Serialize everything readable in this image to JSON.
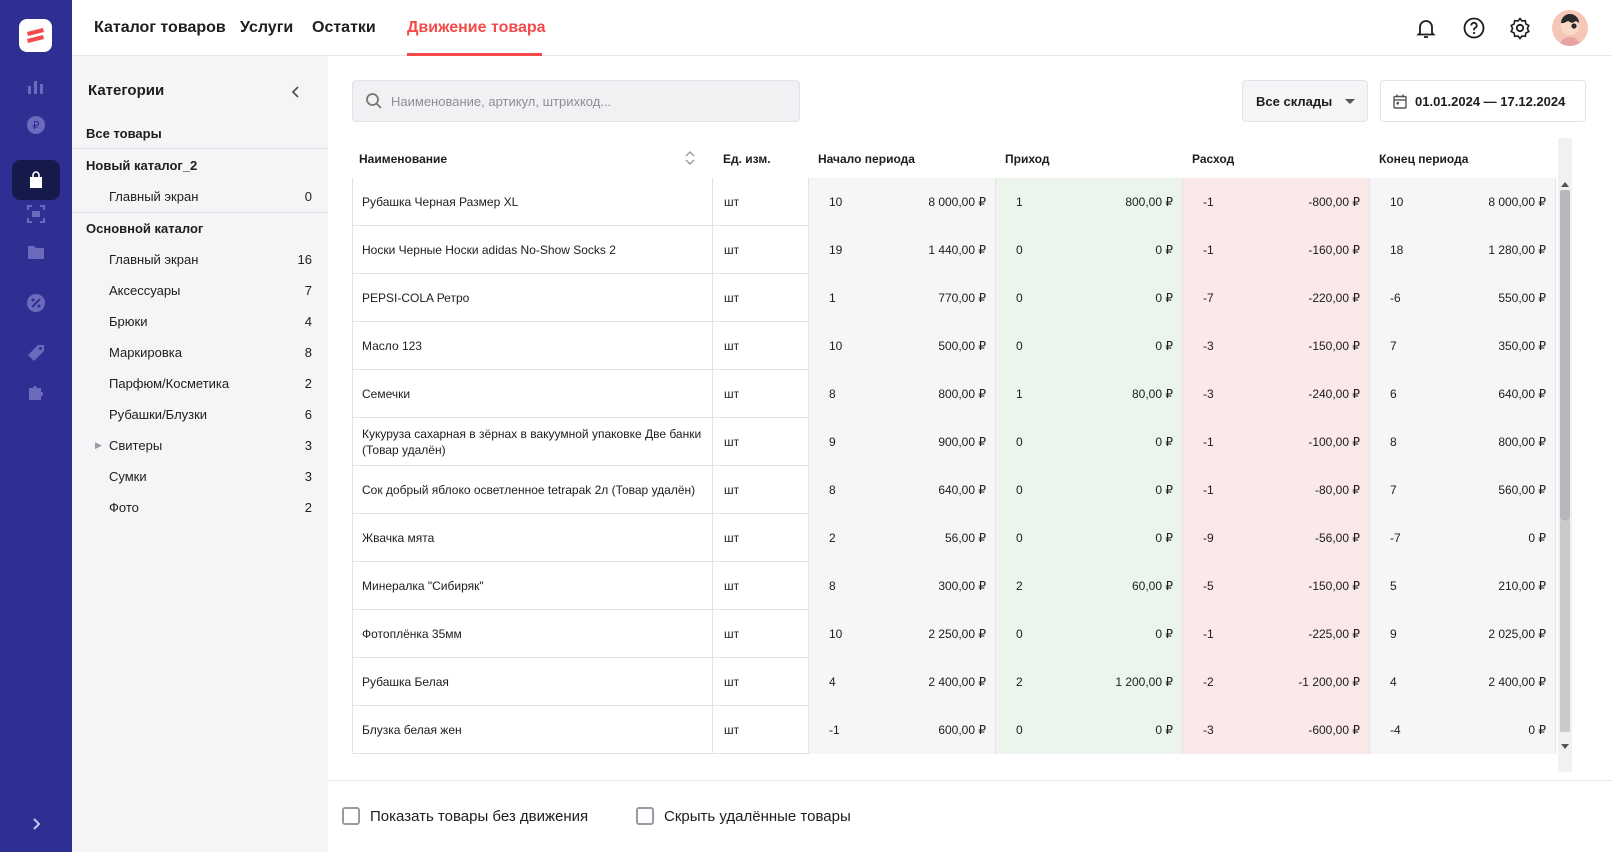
{
  "nav": {
    "tabs": [
      {
        "label": "Каталог товаров"
      },
      {
        "label": "Услуги"
      },
      {
        "label": "Остатки"
      },
      {
        "label": "Движение товара"
      }
    ],
    "active_tab": "Движение товара"
  },
  "categories": {
    "title": "Категории",
    "all": "Все товары",
    "groups": [
      {
        "label": "Новый каталог_2",
        "items": [
          {
            "label": "Главный экран",
            "count": "0"
          }
        ]
      },
      {
        "label": "Основной каталог",
        "items": [
          {
            "label": "Главный экран",
            "count": "16"
          },
          {
            "label": "Аксессуары",
            "count": "7"
          },
          {
            "label": "Брюки",
            "count": "4"
          },
          {
            "label": "Маркировка",
            "count": "8"
          },
          {
            "label": "Парфюм/Косметика",
            "count": "2"
          },
          {
            "label": "Рубашки/Блузки",
            "count": "6"
          },
          {
            "label": "Свитеры",
            "count": "3"
          },
          {
            "label": "Сумки",
            "count": "3"
          },
          {
            "label": "Фото",
            "count": "2"
          }
        ]
      }
    ]
  },
  "search": {
    "placeholder": "Наименование, артикул, штрихкод..."
  },
  "warehouse": {
    "selected": "Все склады"
  },
  "date_range": {
    "value": "01.01.2024 — 17.12.2024"
  },
  "table": {
    "headers": {
      "name": "Наименование",
      "unit": "Ед. изм.",
      "start": "Начало периода",
      "income": "Приход",
      "outcome": "Расход",
      "end": "Конец периода"
    },
    "rows": [
      {
        "name": "Рубашка Черная Размер XL",
        "unit": "шт",
        "start_q": "10",
        "start_s": "8 000,00 ₽",
        "in_q": "1",
        "in_s": "800,00 ₽",
        "out_q": "-1",
        "out_s": "-800,00 ₽",
        "end_q": "10",
        "end_s": "8 000,00 ₽"
      },
      {
        "name": "Носки Черные Носки adidas No-Show Socks 2",
        "unit": "шт",
        "start_q": "19",
        "start_s": "1 440,00 ₽",
        "in_q": "0",
        "in_s": "0 ₽",
        "out_q": "-1",
        "out_s": "-160,00 ₽",
        "end_q": "18",
        "end_s": "1 280,00 ₽"
      },
      {
        "name": "PEPSI-COLA Ретро",
        "unit": "шт",
        "start_q": "1",
        "start_s": "770,00 ₽",
        "in_q": "0",
        "in_s": "0 ₽",
        "out_q": "-7",
        "out_s": "-220,00 ₽",
        "end_q": "-6",
        "end_s": "550,00 ₽"
      },
      {
        "name": "Масло 123",
        "unit": "шт",
        "start_q": "10",
        "start_s": "500,00 ₽",
        "in_q": "0",
        "in_s": "0 ₽",
        "out_q": "-3",
        "out_s": "-150,00 ₽",
        "end_q": "7",
        "end_s": "350,00 ₽"
      },
      {
        "name": "Семечки",
        "unit": "шт",
        "start_q": "8",
        "start_s": "800,00 ₽",
        "in_q": "1",
        "in_s": "80,00 ₽",
        "out_q": "-3",
        "out_s": "-240,00 ₽",
        "end_q": "6",
        "end_s": "640,00 ₽"
      },
      {
        "name": "Кукуруза сахарная в зёрнах в вакуумной упаковке Две банки (Товар удалён)",
        "unit": "шт",
        "start_q": "9",
        "start_s": "900,00 ₽",
        "in_q": "0",
        "in_s": "0 ₽",
        "out_q": "-1",
        "out_s": "-100,00 ₽",
        "end_q": "8",
        "end_s": "800,00 ₽"
      },
      {
        "name": "Сок добрый яблоко осветленное tetrapak 2л (Товар удалён)",
        "unit": "шт",
        "start_q": "8",
        "start_s": "640,00 ₽",
        "in_q": "0",
        "in_s": "0 ₽",
        "out_q": "-1",
        "out_s": "-80,00 ₽",
        "end_q": "7",
        "end_s": "560,00 ₽"
      },
      {
        "name": "Жвачка мята",
        "unit": "шт",
        "start_q": "2",
        "start_s": "56,00 ₽",
        "in_q": "0",
        "in_s": "0 ₽",
        "out_q": "-9",
        "out_s": "-56,00 ₽",
        "end_q": "-7",
        "end_s": "0 ₽"
      },
      {
        "name": "Минералка \"Сибиряк\"",
        "unit": "шт",
        "start_q": "8",
        "start_s": "300,00 ₽",
        "in_q": "2",
        "in_s": "60,00 ₽",
        "out_q": "-5",
        "out_s": "-150,00 ₽",
        "end_q": "5",
        "end_s": "210,00 ₽"
      },
      {
        "name": "Фотоплёнка 35мм",
        "unit": "шт",
        "start_q": "10",
        "start_s": "2 250,00 ₽",
        "in_q": "0",
        "in_s": "0 ₽",
        "out_q": "-1",
        "out_s": "-225,00 ₽",
        "end_q": "9",
        "end_s": "2 025,00 ₽"
      },
      {
        "name": "Рубашка Белая",
        "unit": "шт",
        "start_q": "4",
        "start_s": "2 400,00 ₽",
        "in_q": "2",
        "in_s": "1 200,00 ₽",
        "out_q": "-2",
        "out_s": "-1 200,00 ₽",
        "end_q": "4",
        "end_s": "2 400,00 ₽"
      },
      {
        "name": "Блузка белая жен",
        "unit": "шт",
        "start_q": "-1",
        "start_s": "600,00 ₽",
        "in_q": "0",
        "in_s": "0 ₽",
        "out_q": "-3",
        "out_s": "-600,00 ₽",
        "end_q": "-4",
        "end_s": "0 ₽"
      }
    ]
  },
  "footer": {
    "show_no_movement": "Показать товары без движения",
    "hide_deleted": "Скрыть удалённые товары"
  },
  "colors": {
    "rail": "#2f2f93",
    "accent": "#f44a4a",
    "income_bg": "#ebf5ec",
    "outcome_bg": "#fbe8e8"
  }
}
